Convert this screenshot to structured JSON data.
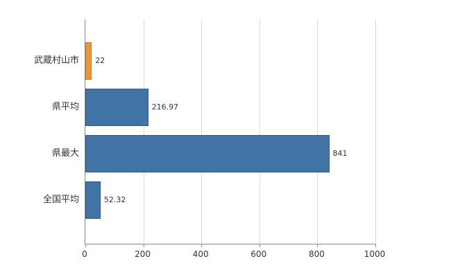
{
  "chart_data": {
    "type": "bar",
    "orientation": "horizontal",
    "title": "",
    "categories": [
      "武蔵村山市",
      "県平均",
      "県最大",
      "全国平均"
    ],
    "values": [
      22,
      216.97,
      841,
      52.32
    ],
    "value_labels": [
      "22",
      "216.97",
      "841",
      "52.32"
    ],
    "series_colors": [
      "#ee962f",
      "#4173a6",
      "#4173a6",
      "#4173a6"
    ],
    "series_border_colors": [
      "#c2761c",
      "#2e5a85",
      "#2e5a85",
      "#2e5a85"
    ],
    "xlim": [
      0,
      1000
    ],
    "x_ticks": [
      0,
      200,
      400,
      600,
      800,
      1000
    ],
    "x_tick_labels": [
      "0",
      "200",
      "400",
      "600",
      "800",
      "1000"
    ],
    "grid": true,
    "legend": false
  },
  "colors": {
    "background": "#ffffff",
    "gridline": "#d9d9d9",
    "axis": "#8a8a8a",
    "text": "#333333"
  }
}
